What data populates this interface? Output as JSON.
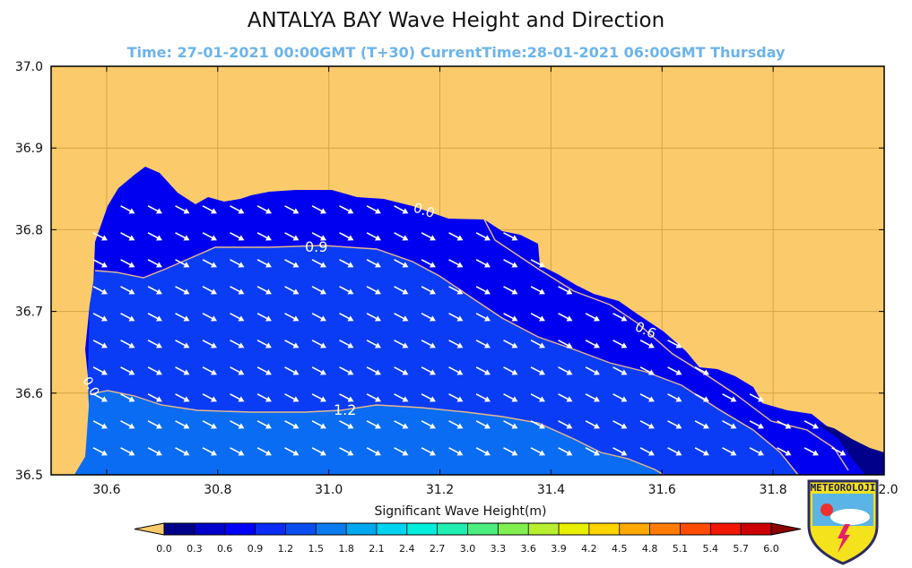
{
  "title": "ANTALYA BAY Wave Height and Direction",
  "subtitle": "Time: 27-01-2021 00:00GMT (T+30)  CurrentTime:28-01-2021 06:00GMT Thursday",
  "logo_text": "METEOROLOJI",
  "colors": {
    "land": "#fbcb6b",
    "grid": "#d4a545",
    "contour_line": "#e8b98a"
  },
  "chart_data": {
    "type": "heatmap",
    "xlim": [
      30.5,
      32.0
    ],
    "ylim": [
      36.5,
      37.0
    ],
    "x_ticks": [
      "30.6",
      "30.8",
      "31.0",
      "31.2",
      "31.4",
      "31.6",
      "31.8",
      "32.0"
    ],
    "y_ticks": [
      "36.5",
      "36.6",
      "36.7",
      "36.8",
      "36.9",
      "37.0"
    ],
    "grid": true,
    "contour_labels": [
      "0.0",
      "0.9",
      "0.6",
      "0.0",
      "1.2"
    ],
    "colorbar": {
      "label": "Significant Wave Height(m)",
      "ticks": [
        "0.0",
        "0.3",
        "0.6",
        "0.9",
        "1.2",
        "1.5",
        "1.8",
        "2.1",
        "2.4",
        "2.7",
        "3.0",
        "3.3",
        "3.6",
        "3.9",
        "4.2",
        "4.5",
        "4.8",
        "5.1",
        "5.4",
        "5.7",
        "6.0"
      ],
      "colors": [
        "#00008b",
        "#0000cd",
        "#0000ff",
        "#0a2cf5",
        "#0b4ef0",
        "#0a7cf0",
        "#00a8f0",
        "#00d4f0",
        "#00eedc",
        "#20eeb0",
        "#4cee80",
        "#80f050",
        "#b8f030",
        "#e8f000",
        "#ffd400",
        "#ffa800",
        "#ff7c00",
        "#ff4c00",
        "#f01800",
        "#cc0000"
      ],
      "under_color": "#fbcb6b",
      "over_color": "#8b0000"
    },
    "direction_arrows": "southeast"
  }
}
